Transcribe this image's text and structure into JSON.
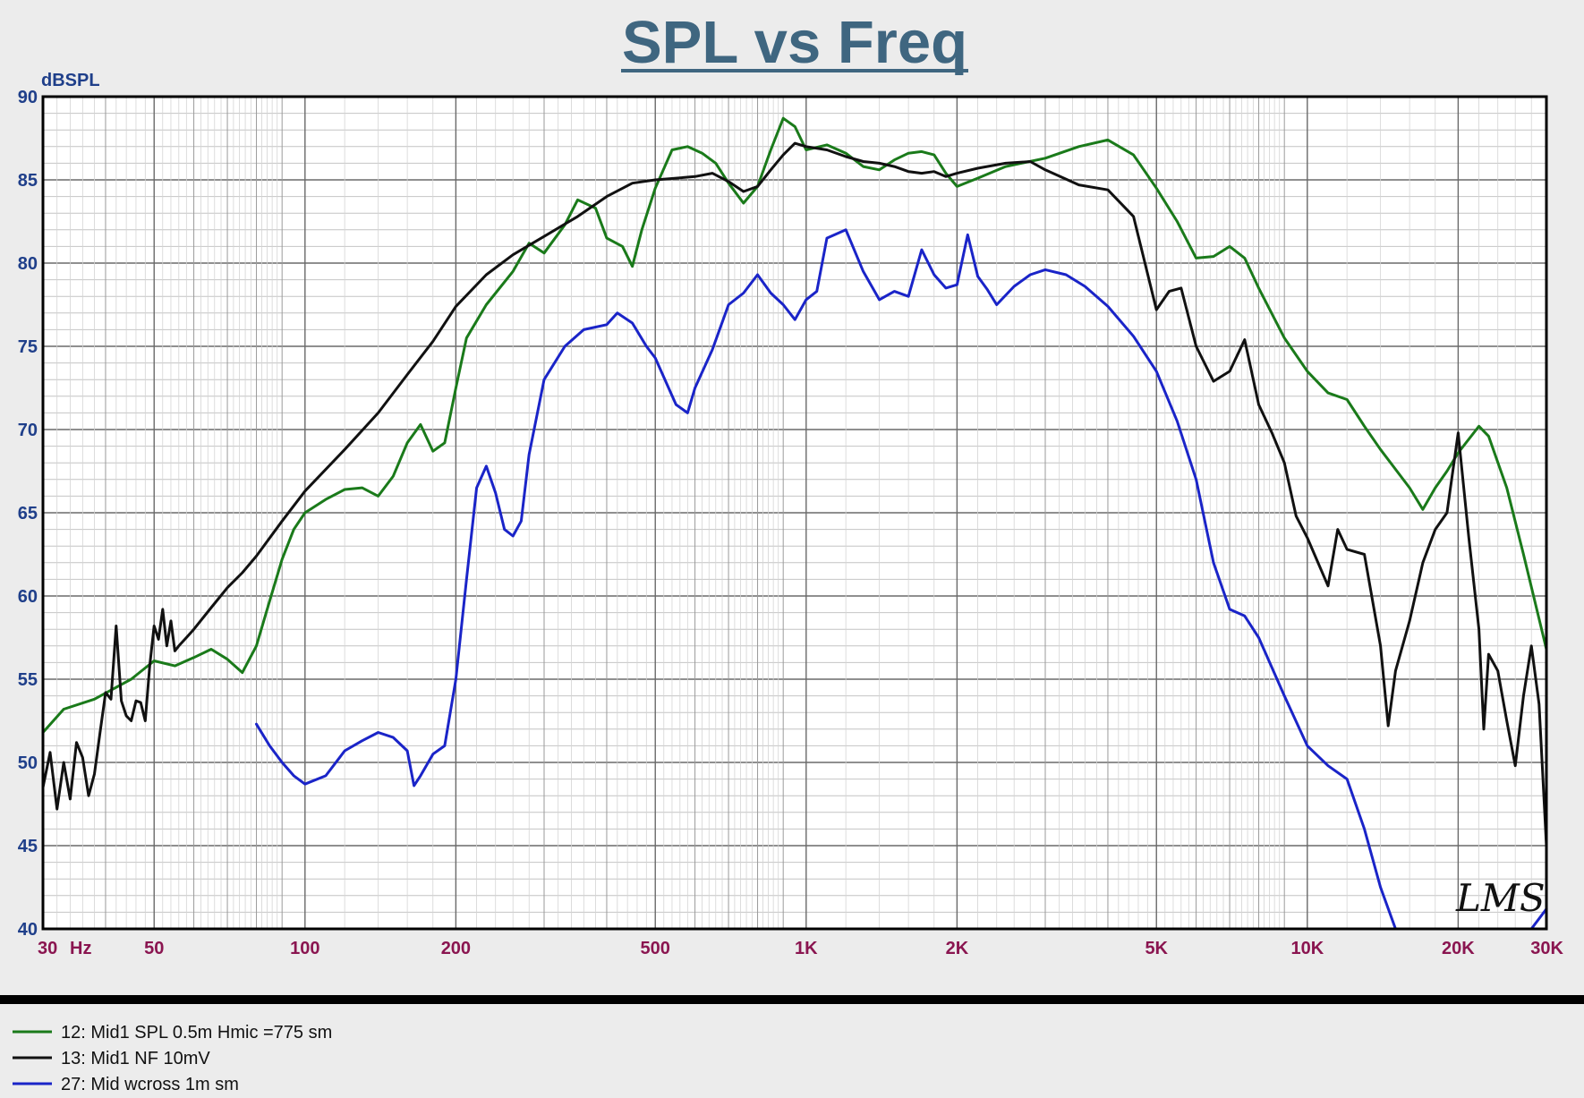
{
  "chart_data": {
    "type": "line",
    "title": "SPL vs Freq",
    "ylabel": "dBSPL",
    "xlabel": "",
    "x_scale": "log",
    "xlim": [
      30,
      30000
    ],
    "ylim": [
      40,
      90
    ],
    "grid": true,
    "y_ticks": [
      {
        "value": 90,
        "label": "90"
      },
      {
        "value": 85,
        "label": "85"
      },
      {
        "value": 80,
        "label": "80"
      },
      {
        "value": 75,
        "label": "75"
      },
      {
        "value": 70,
        "label": "70"
      },
      {
        "value": 65,
        "label": "65"
      },
      {
        "value": 60,
        "label": "60"
      },
      {
        "value": 55,
        "label": "55"
      },
      {
        "value": 50,
        "label": "50"
      },
      {
        "value": 45,
        "label": "45"
      },
      {
        "value": 40,
        "label": "40"
      }
    ],
    "x_ticks": [
      {
        "value": 30,
        "label": "30"
      },
      {
        "value": 50,
        "label": "50"
      },
      {
        "value": 100,
        "label": "100"
      },
      {
        "value": 200,
        "label": "200"
      },
      {
        "value": 500,
        "label": "500"
      },
      {
        "value": 1000,
        "label": "1K"
      },
      {
        "value": 2000,
        "label": "2K"
      },
      {
        "value": 5000,
        "label": "5K"
      },
      {
        "value": 10000,
        "label": "10K"
      },
      {
        "value": 20000,
        "label": "20K"
      },
      {
        "value": 30000,
        "label": "30K"
      }
    ],
    "x_unit_label": "Hz",
    "watermark": "LMS",
    "legend_position": "bottom",
    "series": [
      {
        "name": "12: Mid1 SPL 0.5m Hmic =775 sm",
        "color": "#1a7a1a",
        "points": [
          [
            30,
            51.8
          ],
          [
            33,
            53.2
          ],
          [
            38,
            53.8
          ],
          [
            45,
            55.0
          ],
          [
            50,
            56.1
          ],
          [
            55,
            55.8
          ],
          [
            60,
            56.3
          ],
          [
            65,
            56.8
          ],
          [
            70,
            56.2
          ],
          [
            75,
            55.4
          ],
          [
            80,
            57.0
          ],
          [
            85,
            59.7
          ],
          [
            90,
            62.2
          ],
          [
            95,
            64.0
          ],
          [
            100,
            65.0
          ],
          [
            110,
            65.8
          ],
          [
            120,
            66.4
          ],
          [
            130,
            66.5
          ],
          [
            140,
            66.0
          ],
          [
            150,
            67.2
          ],
          [
            160,
            69.2
          ],
          [
            170,
            70.3
          ],
          [
            180,
            68.7
          ],
          [
            190,
            69.2
          ],
          [
            200,
            72.5
          ],
          [
            210,
            75.5
          ],
          [
            230,
            77.5
          ],
          [
            260,
            79.5
          ],
          [
            280,
            81.2
          ],
          [
            300,
            80.6
          ],
          [
            330,
            82.3
          ],
          [
            350,
            83.8
          ],
          [
            380,
            83.3
          ],
          [
            400,
            81.5
          ],
          [
            430,
            81.0
          ],
          [
            450,
            79.8
          ],
          [
            470,
            82.0
          ],
          [
            500,
            84.5
          ],
          [
            540,
            86.8
          ],
          [
            580,
            87.0
          ],
          [
            620,
            86.6
          ],
          [
            660,
            86.0
          ],
          [
            700,
            84.8
          ],
          [
            750,
            83.6
          ],
          [
            800,
            84.6
          ],
          [
            850,
            86.8
          ],
          [
            900,
            88.7
          ],
          [
            950,
            88.2
          ],
          [
            1000,
            86.8
          ],
          [
            1100,
            87.1
          ],
          [
            1200,
            86.6
          ],
          [
            1300,
            85.8
          ],
          [
            1400,
            85.6
          ],
          [
            1500,
            86.2
          ],
          [
            1600,
            86.6
          ],
          [
            1700,
            86.7
          ],
          [
            1800,
            86.5
          ],
          [
            1900,
            85.4
          ],
          [
            2000,
            84.6
          ],
          [
            2200,
            85.1
          ],
          [
            2500,
            85.8
          ],
          [
            3000,
            86.3
          ],
          [
            3500,
            87.0
          ],
          [
            4000,
            87.4
          ],
          [
            4500,
            86.5
          ],
          [
            5000,
            84.5
          ],
          [
            5500,
            82.5
          ],
          [
            6000,
            80.3
          ],
          [
            6500,
            80.4
          ],
          [
            7000,
            81.0
          ],
          [
            7500,
            80.3
          ],
          [
            8000,
            78.5
          ],
          [
            9000,
            75.5
          ],
          [
            10000,
            73.5
          ],
          [
            11000,
            72.2
          ],
          [
            12000,
            71.8
          ],
          [
            13000,
            70.2
          ],
          [
            14000,
            68.8
          ],
          [
            16000,
            66.5
          ],
          [
            17000,
            65.2
          ],
          [
            18000,
            66.5
          ],
          [
            19000,
            67.5
          ],
          [
            20000,
            68.6
          ],
          [
            22000,
            70.2
          ],
          [
            23000,
            69.6
          ],
          [
            25000,
            66.5
          ],
          [
            27000,
            62.5
          ],
          [
            30000,
            56.8
          ]
        ]
      },
      {
        "name": "13: Mid1 NF 10mV",
        "color": "#111111",
        "points": [
          [
            30,
            48.5
          ],
          [
            31,
            50.6
          ],
          [
            32,
            47.2
          ],
          [
            33,
            50.0
          ],
          [
            34,
            47.8
          ],
          [
            35,
            51.2
          ],
          [
            36,
            50.3
          ],
          [
            37,
            48.0
          ],
          [
            38,
            49.3
          ],
          [
            39,
            51.8
          ],
          [
            40,
            54.2
          ],
          [
            41,
            53.8
          ],
          [
            42,
            58.2
          ],
          [
            43,
            53.7
          ],
          [
            44,
            52.8
          ],
          [
            45,
            52.5
          ],
          [
            46,
            53.7
          ],
          [
            47,
            53.6
          ],
          [
            48,
            52.5
          ],
          [
            49,
            55.8
          ],
          [
            50,
            58.2
          ],
          [
            51,
            57.4
          ],
          [
            52,
            59.2
          ],
          [
            53,
            57.0
          ],
          [
            54,
            58.5
          ],
          [
            55,
            56.7
          ],
          [
            56,
            57.0
          ],
          [
            58,
            57.5
          ],
          [
            60,
            58.0
          ],
          [
            65,
            59.3
          ],
          [
            70,
            60.5
          ],
          [
            75,
            61.4
          ],
          [
            80,
            62.4
          ],
          [
            90,
            64.5
          ],
          [
            100,
            66.3
          ],
          [
            120,
            68.8
          ],
          [
            140,
            71.0
          ],
          [
            160,
            73.3
          ],
          [
            180,
            75.3
          ],
          [
            200,
            77.4
          ],
          [
            230,
            79.3
          ],
          [
            260,
            80.5
          ],
          [
            300,
            81.6
          ],
          [
            350,
            82.8
          ],
          [
            400,
            84.0
          ],
          [
            450,
            84.8
          ],
          [
            500,
            85.0
          ],
          [
            550,
            85.1
          ],
          [
            600,
            85.2
          ],
          [
            650,
            85.4
          ],
          [
            700,
            84.9
          ],
          [
            750,
            84.3
          ],
          [
            800,
            84.6
          ],
          [
            850,
            85.6
          ],
          [
            900,
            86.5
          ],
          [
            950,
            87.2
          ],
          [
            1000,
            87.0
          ],
          [
            1100,
            86.8
          ],
          [
            1200,
            86.4
          ],
          [
            1300,
            86.1
          ],
          [
            1400,
            86.0
          ],
          [
            1500,
            85.8
          ],
          [
            1600,
            85.5
          ],
          [
            1700,
            85.4
          ],
          [
            1800,
            85.5
          ],
          [
            1900,
            85.2
          ],
          [
            2000,
            85.4
          ],
          [
            2200,
            85.7
          ],
          [
            2500,
            86.0
          ],
          [
            2800,
            86.1
          ],
          [
            3000,
            85.6
          ],
          [
            3500,
            84.7
          ],
          [
            4000,
            84.4
          ],
          [
            4500,
            82.8
          ],
          [
            5000,
            77.2
          ],
          [
            5300,
            78.3
          ],
          [
            5600,
            78.5
          ],
          [
            6000,
            75.0
          ],
          [
            6500,
            72.9
          ],
          [
            7000,
            73.5
          ],
          [
            7500,
            75.4
          ],
          [
            8000,
            71.5
          ],
          [
            8500,
            69.8
          ],
          [
            9000,
            68.0
          ],
          [
            9500,
            64.8
          ],
          [
            10000,
            63.5
          ],
          [
            11000,
            60.6
          ],
          [
            11500,
            64.0
          ],
          [
            12000,
            62.8
          ],
          [
            13000,
            62.5
          ],
          [
            14000,
            57.0
          ],
          [
            14500,
            52.2
          ],
          [
            15000,
            55.5
          ],
          [
            16000,
            58.5
          ],
          [
            17000,
            62.0
          ],
          [
            18000,
            64.0
          ],
          [
            19000,
            65.0
          ],
          [
            20000,
            69.8
          ],
          [
            21000,
            63.5
          ],
          [
            22000,
            58.0
          ],
          [
            22500,
            52.0
          ],
          [
            23000,
            56.5
          ],
          [
            24000,
            55.5
          ],
          [
            25000,
            52.5
          ],
          [
            26000,
            49.8
          ],
          [
            27000,
            54.0
          ],
          [
            28000,
            57.0
          ],
          [
            29000,
            53.5
          ],
          [
            30000,
            45.0
          ]
        ]
      },
      {
        "name": "27: Mid wcross 1m sm",
        "color": "#1a24c8",
        "points": [
          [
            80,
            52.3
          ],
          [
            85,
            51.0
          ],
          [
            90,
            50.0
          ],
          [
            95,
            49.2
          ],
          [
            100,
            48.7
          ],
          [
            110,
            49.2
          ],
          [
            120,
            50.7
          ],
          [
            130,
            51.3
          ],
          [
            140,
            51.8
          ],
          [
            150,
            51.5
          ],
          [
            160,
            50.7
          ],
          [
            165,
            48.6
          ],
          [
            170,
            49.2
          ],
          [
            180,
            50.5
          ],
          [
            190,
            51.0
          ],
          [
            200,
            55.0
          ],
          [
            210,
            61.0
          ],
          [
            220,
            66.5
          ],
          [
            230,
            67.8
          ],
          [
            240,
            66.2
          ],
          [
            250,
            64.0
          ],
          [
            260,
            63.6
          ],
          [
            270,
            64.5
          ],
          [
            280,
            68.5
          ],
          [
            300,
            73.0
          ],
          [
            330,
            75.0
          ],
          [
            360,
            76.0
          ],
          [
            400,
            76.3
          ],
          [
            420,
            77.0
          ],
          [
            450,
            76.4
          ],
          [
            480,
            75.0
          ],
          [
            500,
            74.3
          ],
          [
            550,
            71.5
          ],
          [
            580,
            71.0
          ],
          [
            600,
            72.5
          ],
          [
            650,
            74.8
          ],
          [
            700,
            77.5
          ],
          [
            750,
            78.2
          ],
          [
            800,
            79.3
          ],
          [
            850,
            78.2
          ],
          [
            900,
            77.5
          ],
          [
            950,
            76.6
          ],
          [
            1000,
            77.8
          ],
          [
            1050,
            78.3
          ],
          [
            1100,
            81.5
          ],
          [
            1200,
            82.0
          ],
          [
            1300,
            79.5
          ],
          [
            1400,
            77.8
          ],
          [
            1500,
            78.3
          ],
          [
            1600,
            78.0
          ],
          [
            1700,
            80.8
          ],
          [
            1800,
            79.3
          ],
          [
            1900,
            78.5
          ],
          [
            2000,
            78.7
          ],
          [
            2100,
            81.7
          ],
          [
            2200,
            79.2
          ],
          [
            2300,
            78.4
          ],
          [
            2400,
            77.5
          ],
          [
            2600,
            78.6
          ],
          [
            2800,
            79.3
          ],
          [
            3000,
            79.6
          ],
          [
            3300,
            79.3
          ],
          [
            3600,
            78.6
          ],
          [
            4000,
            77.4
          ],
          [
            4500,
            75.6
          ],
          [
            5000,
            73.5
          ],
          [
            5500,
            70.5
          ],
          [
            6000,
            67.0
          ],
          [
            6500,
            62.0
          ],
          [
            7000,
            59.2
          ],
          [
            7500,
            58.8
          ],
          [
            8000,
            57.5
          ],
          [
            9000,
            54.0
          ],
          [
            10000,
            51.0
          ],
          [
            11000,
            49.8
          ],
          [
            12000,
            49.0
          ],
          [
            13000,
            46.0
          ],
          [
            14000,
            42.5
          ],
          [
            15000,
            40.0
          ],
          [
            20000,
            40.0
          ],
          [
            25000,
            40.0
          ],
          [
            28000,
            40.0
          ],
          [
            30000,
            41.2
          ]
        ]
      }
    ]
  }
}
